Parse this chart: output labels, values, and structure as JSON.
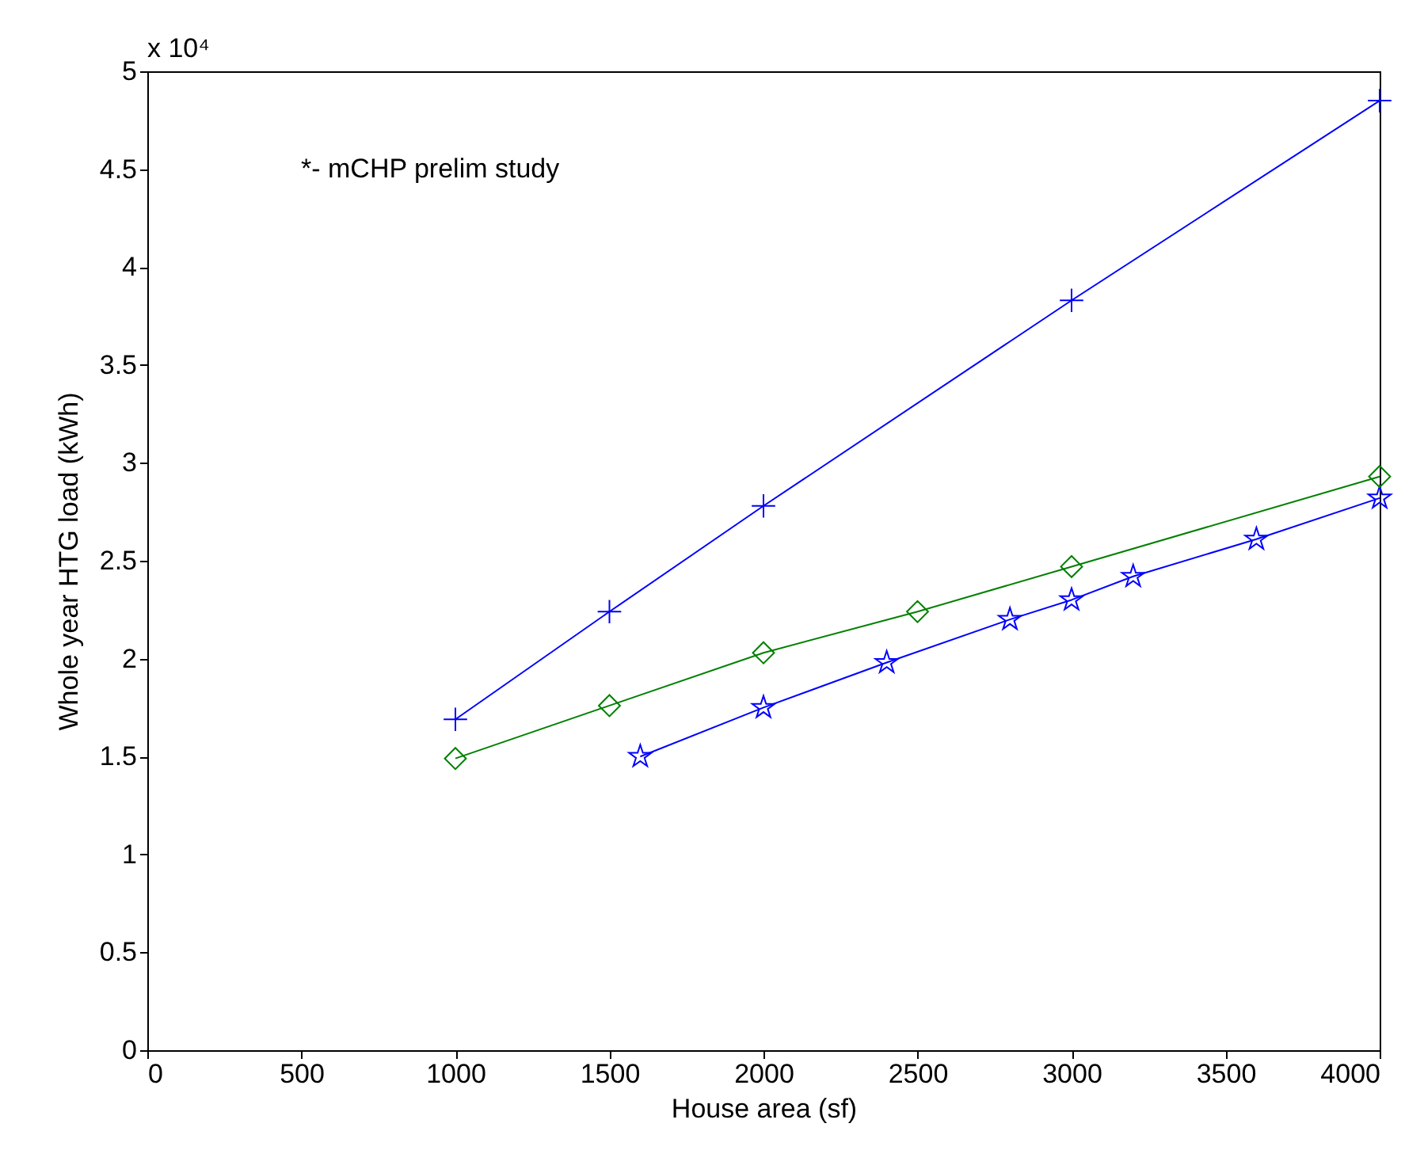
{
  "chart_data": {
    "type": "line",
    "xlabel": "House area (sf)",
    "ylabel": "Whole year HTG load (kWh)",
    "annotations": [
      "x 10⁴",
      "*- mCHP prelim study"
    ],
    "series": [
      {
        "color": "#0000ff",
        "marker": "star",
        "x": [
          1600,
          2000,
          2400,
          2800,
          3000,
          3200,
          3600,
          4000
        ],
        "values": [
          1.5,
          1.75,
          1.98,
          2.2,
          2.3,
          2.42,
          2.61,
          2.82
        ]
      },
      {
        "color": "#0000ff",
        "marker": "cross",
        "x": [
          1000,
          1500,
          2000,
          3000,
          4000
        ],
        "values": [
          1.69,
          2.24,
          2.78,
          3.83,
          4.85
        ]
      },
      {
        "color": "#008000",
        "marker": "diamond",
        "x": [
          1000,
          1500,
          2000,
          2500,
          3000,
          4000
        ],
        "values": [
          1.49,
          1.76,
          2.03,
          2.24,
          2.47,
          2.93
        ]
      }
    ],
    "xlim": [
      0,
      4000
    ],
    "xticks": [
      0,
      500,
      1000,
      1500,
      2000,
      2500,
      3000,
      3500,
      4000
    ],
    "ylim": [
      0,
      5
    ],
    "yticks": [
      0,
      0.5,
      1,
      1.5,
      2,
      2.5,
      3,
      3.5,
      4,
      4.5,
      5
    ],
    "grid": false,
    "line_style": "solid"
  }
}
